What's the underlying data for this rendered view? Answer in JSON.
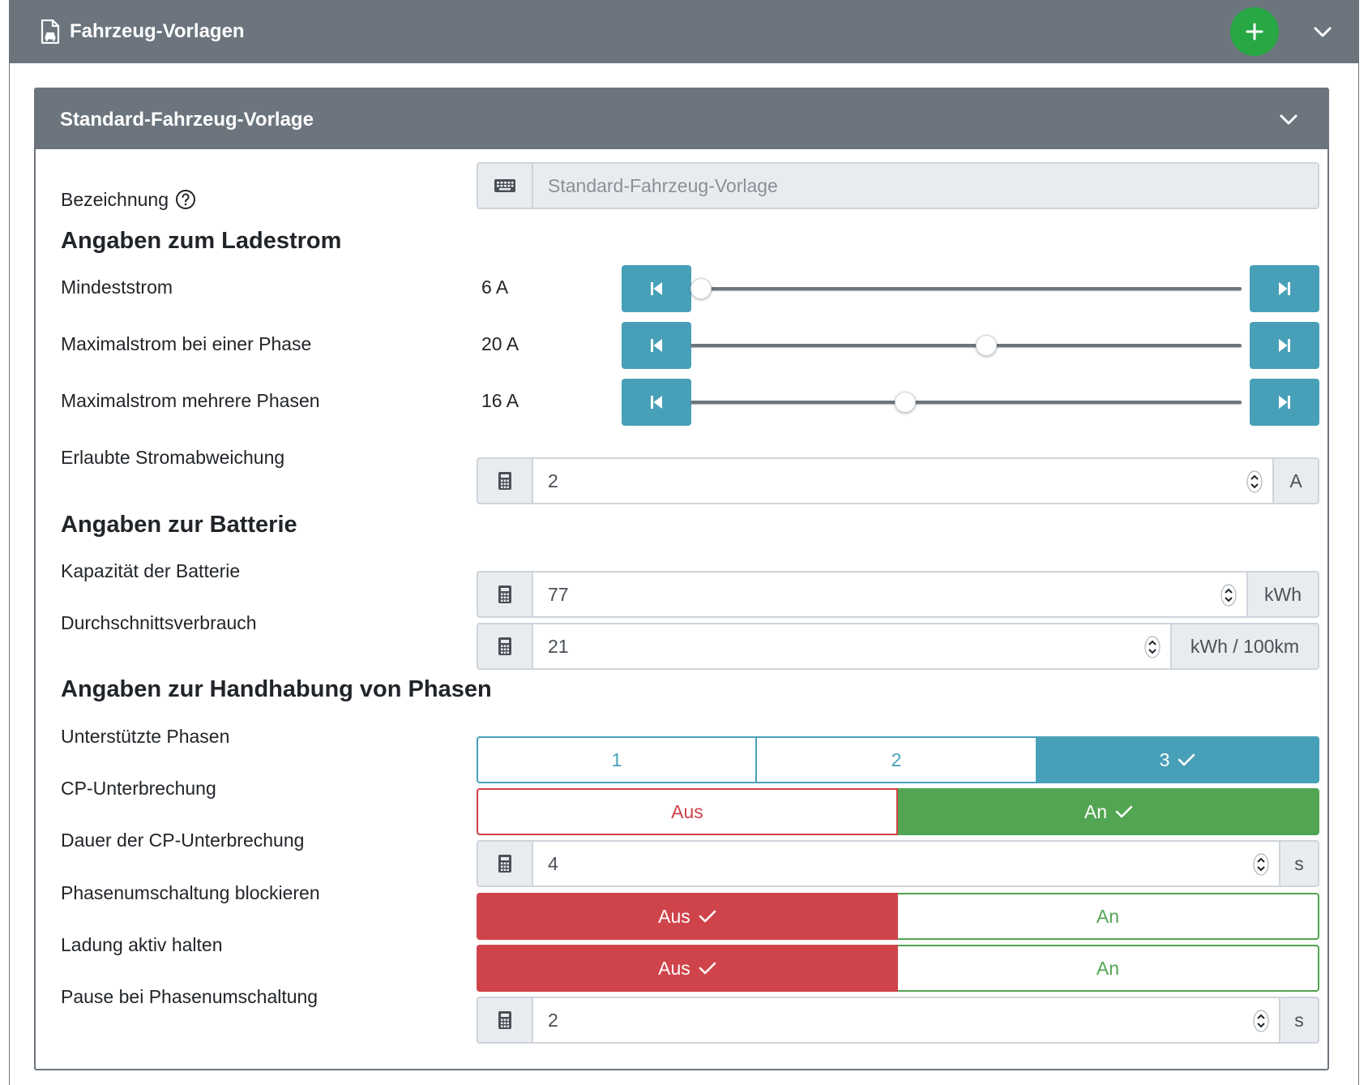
{
  "header": {
    "title": "Fahrzeug-Vorlagen",
    "file_icon": "file-car-icon",
    "add_icon": "plus-icon",
    "collapse_icon": "chevron-down-icon"
  },
  "template": {
    "title": "Standard-Fahrzeug-Vorlage",
    "collapse_icon": "chevron-down-icon",
    "name": {
      "label": "Bezeichnung",
      "help_icon": "question-circle-icon",
      "input_icon": "keyboard-icon",
      "placeholder": "Standard-Fahrzeug-Vorlage",
      "value": ""
    }
  },
  "current": {
    "heading": "Angaben zum Ladestrom",
    "min": {
      "label": "Mindeststrom",
      "display": "6 A",
      "value": 6,
      "min": 6,
      "max": 32
    },
    "max_one_phase": {
      "label": "Maximalstrom bei einer Phase",
      "display": "20 A",
      "value": 20,
      "min": 6,
      "max": 32
    },
    "max_multi_phase": {
      "label": "Maximalstrom mehrere Phasen",
      "display": "16 A",
      "value": 16,
      "min": 6,
      "max": 32
    },
    "deviation": {
      "label": "Erlaubte Stromabweichung",
      "value": "2",
      "unit": "A"
    }
  },
  "battery": {
    "heading": "Angaben zur Batterie",
    "capacity": {
      "label": "Kapazität der Batterie",
      "value": "77",
      "unit": "kWh"
    },
    "consumption": {
      "label": "Durchschnittsverbrauch",
      "value": "21",
      "unit": "kWh / 100km"
    }
  },
  "phases": {
    "heading": "Angaben zur Handhabung von Phasen",
    "supported": {
      "label": "Unterstützte Phasen",
      "options": [
        "1",
        "2",
        "3"
      ],
      "selected": "3"
    },
    "cp_interrupt": {
      "label": "CP-Unterbrechung",
      "off": "Aus",
      "on": "An",
      "selected": "An"
    },
    "cp_duration": {
      "label": "Dauer der CP-Unterbrechung",
      "value": "4",
      "unit": "s"
    },
    "block_switch": {
      "label": "Phasenumschaltung blockieren",
      "off": "Aus",
      "on": "An",
      "selected": "Aus"
    },
    "keep_active": {
      "label": "Ladung aktiv halten",
      "off": "Aus",
      "on": "An",
      "selected": "Aus"
    },
    "switch_pause": {
      "label": "Pause bei Phasenumschaltung",
      "value": "2",
      "unit": "s"
    }
  },
  "colors": {
    "header_gray": "#6c757d",
    "info": "#48a0b8",
    "success": "#52a552",
    "danger": "#cf434b"
  }
}
